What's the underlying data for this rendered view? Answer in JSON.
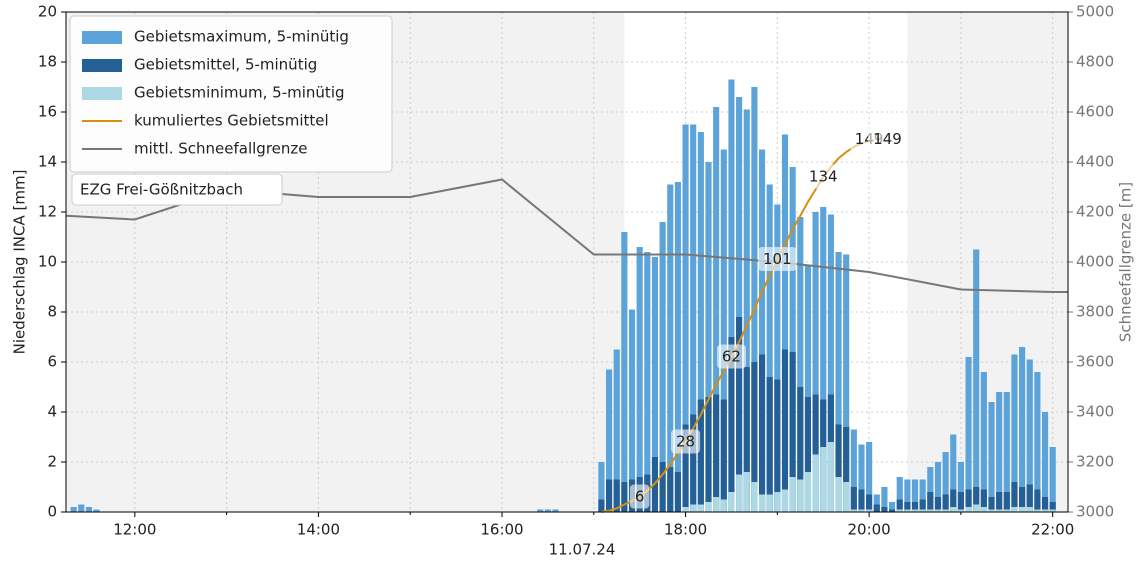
{
  "chart_data": {
    "type": "bar",
    "ylabel": "Niederschlag INCA [mm]",
    "y2label": "Schneefallgrenze [m]",
    "xlabel": "11.07.24",
    "box_text": "EZG Frei-Gößnitzbach",
    "xlim": [
      675,
      1330
    ],
    "xticks": [
      {
        "value": 720,
        "label": "12:00"
      },
      {
        "value": 840,
        "label": "14:00"
      },
      {
        "value": 960,
        "label": "16:00"
      },
      {
        "value": 1080,
        "label": "18:00"
      },
      {
        "value": 1200,
        "label": "20:00"
      },
      {
        "value": 1320,
        "label": "22:00"
      }
    ],
    "xgrid": [
      780,
      900,
      1020,
      1140,
      1260
    ],
    "ylim": [
      0,
      20
    ],
    "yticks": [
      0,
      2,
      4,
      6,
      8,
      10,
      12,
      14,
      16,
      18,
      20
    ],
    "y2lim": [
      3000,
      5000
    ],
    "y2ticks": [
      3000,
      3200,
      3400,
      3600,
      3800,
      4000,
      4200,
      4400,
      4600,
      4800,
      5000
    ],
    "y3lim": [
      0,
      200
    ],
    "grid": true,
    "legend": "upper left",
    "shaded": [
      [
        675,
        1040
      ],
      [
        1225,
        1330
      ]
    ],
    "x": [
      680,
      685,
      690,
      695,
      985,
      990,
      995,
      1025,
      1030,
      1035,
      1040,
      1045,
      1050,
      1055,
      1060,
      1065,
      1070,
      1075,
      1080,
      1085,
      1090,
      1095,
      1100,
      1105,
      1110,
      1115,
      1120,
      1125,
      1130,
      1135,
      1140,
      1145,
      1150,
      1155,
      1160,
      1165,
      1170,
      1175,
      1180,
      1185,
      1190,
      1195,
      1200,
      1205,
      1210,
      1215,
      1220,
      1225,
      1230,
      1235,
      1240,
      1245,
      1250,
      1255,
      1260,
      1265,
      1270,
      1275,
      1280,
      1285,
      1290,
      1295,
      1300,
      1305,
      1310,
      1315,
      1320
    ],
    "series": [
      {
        "name": "Gebietsmaximum, 5-minütig",
        "color": "#5ba3d9",
        "values": [
          0.2,
          0.3,
          0.2,
          0.1,
          0.1,
          0.1,
          0.1,
          2.0,
          5.7,
          6.5,
          11.2,
          8.1,
          10.6,
          10.4,
          10.2,
          11.6,
          13.1,
          13.2,
          15.5,
          15.5,
          15.2,
          14.0,
          16.2,
          14.5,
          17.3,
          16.6,
          16.1,
          17.0,
          14.5,
          13.1,
          12.3,
          15.1,
          13.8,
          11.8,
          9.9,
          12.0,
          12.2,
          11.9,
          10.4,
          10.3,
          3.3,
          2.7,
          2.8,
          0.7,
          1.0,
          0.4,
          1.4,
          1.3,
          1.3,
          1.3,
          1.8,
          2.0,
          2.4,
          3.1,
          2.0,
          6.2,
          10.5,
          5.6,
          4.4,
          4.8,
          4.8,
          6.3,
          6.6,
          6.1,
          5.6,
          4.0,
          2.6
        ]
      },
      {
        "name": "Gebietsmittel, 5-minütig",
        "color": "#245f96",
        "values": [
          0,
          0,
          0,
          0,
          0,
          0,
          0,
          0.5,
          1.3,
          1.3,
          1.2,
          1.3,
          1.4,
          1.5,
          2.2,
          2.0,
          1.8,
          1.6,
          3.5,
          3.9,
          4.5,
          4.6,
          4.7,
          4.5,
          7.0,
          7.8,
          5.8,
          6.0,
          6.3,
          5.4,
          5.3,
          6.5,
          6.4,
          5.0,
          4.6,
          4.7,
          4.5,
          4.7,
          3.5,
          3.4,
          1.0,
          0.9,
          0.7,
          0.3,
          0.2,
          0.1,
          0.5,
          0.4,
          0.4,
          0.5,
          0.8,
          0.6,
          0.7,
          0.9,
          0.8,
          0.9,
          1.0,
          0.9,
          0.6,
          0.8,
          0.8,
          1.2,
          1.0,
          1.1,
          0.9,
          0.6,
          0.4
        ]
      },
      {
        "name": "Gebietsminimum, 5-minütig",
        "color": "#add8e6",
        "values": [
          0,
          0,
          0,
          0,
          0,
          0,
          0,
          0,
          0,
          0,
          0,
          0,
          0,
          0,
          0,
          0,
          0,
          0,
          0.2,
          0.3,
          0.3,
          0.4,
          0.6,
          0.5,
          0.8,
          1.5,
          1.6,
          1.2,
          0.7,
          0.7,
          0.8,
          0.9,
          1.4,
          1.3,
          1.6,
          2.3,
          2.6,
          2.8,
          1.4,
          1.2,
          0.1,
          0.1,
          0.1,
          0,
          0,
          0,
          0.1,
          0.1,
          0.1,
          0.1,
          0.1,
          0.1,
          0.1,
          0.2,
          0.1,
          0.2,
          0.3,
          0.2,
          0.1,
          0.1,
          0.1,
          0.2,
          0.2,
          0.2,
          0.1,
          0.1,
          0.1
        ]
      }
    ],
    "lines": [
      {
        "name": "kumuliertes Gebietsmittel",
        "color": "#d4900f",
        "axis": "y3",
        "x": [
          1025,
          1030,
          1035,
          1040,
          1045,
          1050,
          1055,
          1060,
          1065,
          1070,
          1075,
          1080,
          1085,
          1090,
          1095,
          1100,
          1105,
          1110,
          1115,
          1120,
          1125,
          1130,
          1135,
          1140,
          1145,
          1150,
          1155,
          1160,
          1165,
          1170,
          1175,
          1180,
          1185,
          1190,
          1195,
          1200,
          1205
        ],
        "values": [
          0,
          0.5,
          1.5,
          3,
          4.5,
          6,
          8.5,
          11.5,
          15,
          19,
          23.5,
          28,
          33.5,
          39,
          45,
          51,
          56.5,
          62,
          68,
          74.5,
          81,
          88,
          94.5,
          101,
          107,
          113,
          118.5,
          124,
          129,
          134,
          138,
          141.5,
          144,
          146,
          147.5,
          148.5,
          149
        ]
      },
      {
        "name": "mittl. Schneefallgrenze",
        "color": "#777777",
        "axis": "y2",
        "x": [
          675,
          720,
          780,
          840,
          900,
          960,
          1020,
          1080,
          1140,
          1200,
          1260,
          1320,
          1330
        ],
        "values": [
          4185,
          4170,
          4290,
          4260,
          4260,
          4330,
          4030,
          4030,
          4000,
          3960,
          3890,
          3880,
          3880
        ]
      }
    ],
    "annotations": [
      {
        "x": 1050,
        "value": 6
      },
      {
        "x": 1080,
        "value": 28
      },
      {
        "x": 1110,
        "value": 62
      },
      {
        "x": 1140,
        "value": 101
      },
      {
        "x": 1170,
        "value": 134
      },
      {
        "x": 1200,
        "value": 149
      },
      {
        "x": 1212,
        "value": 149
      }
    ]
  }
}
